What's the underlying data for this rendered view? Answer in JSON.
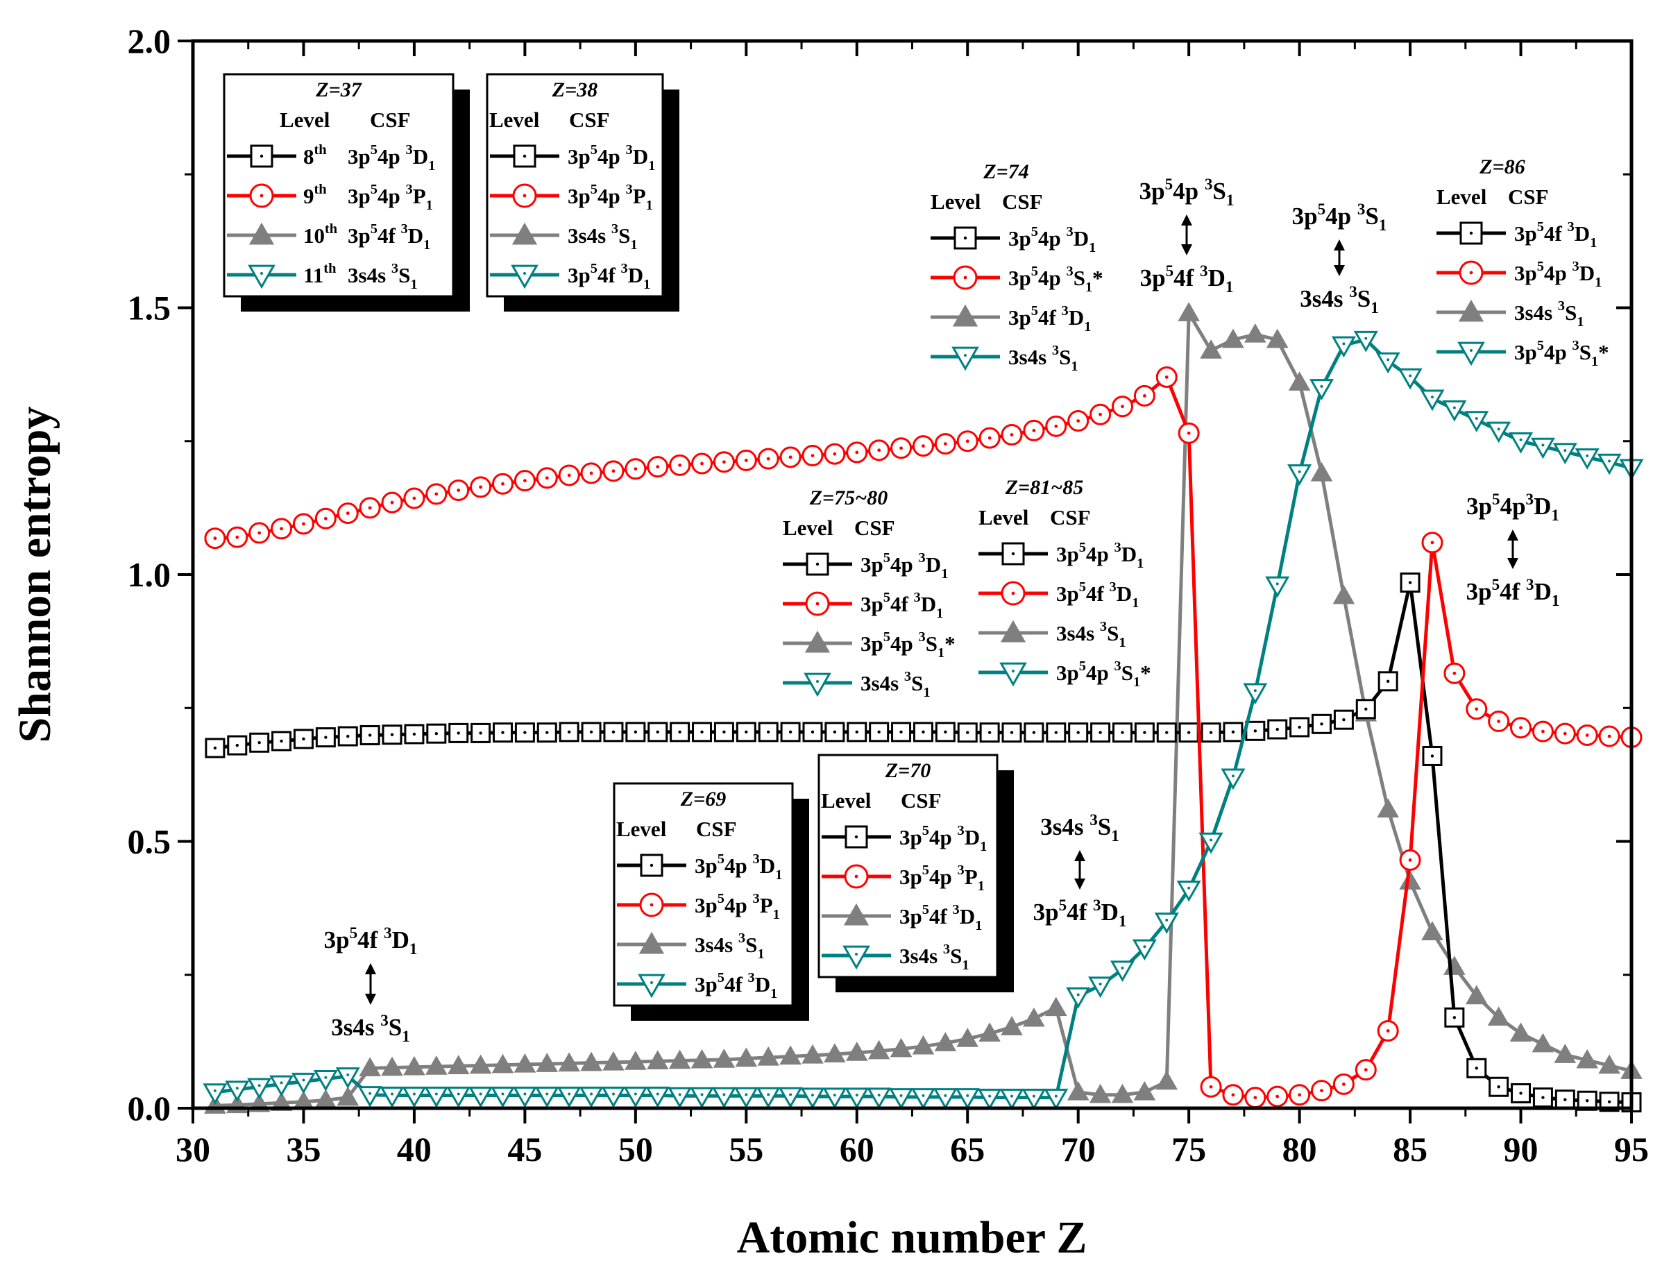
{
  "chart_data": {
    "type": "line",
    "title": "",
    "xlabel": "Atomic number Z",
    "ylabel": "Shannon entropy",
    "xlim": [
      30,
      95
    ],
    "ylim": [
      0.0,
      2.0
    ],
    "x_ticks": [
      "30",
      "35",
      "40",
      "45",
      "50",
      "55",
      "60",
      "65",
      "70",
      "75",
      "80",
      "85",
      "90",
      "95"
    ],
    "y_ticks": [
      "0.0",
      "0.5",
      "1.0",
      "1.5",
      "2.0"
    ],
    "x": [
      31,
      32,
      33,
      34,
      35,
      36,
      37,
      38,
      39,
      40,
      41,
      42,
      43,
      44,
      45,
      46,
      47,
      48,
      49,
      50,
      51,
      52,
      53,
      54,
      55,
      56,
      57,
      58,
      59,
      60,
      61,
      62,
      63,
      64,
      65,
      66,
      67,
      68,
      69,
      70,
      71,
      72,
      73,
      74,
      75,
      76,
      77,
      78,
      79,
      80,
      81,
      82,
      83,
      84,
      85,
      86,
      87,
      88,
      89,
      90,
      91,
      92,
      93,
      94,
      95
    ],
    "series": [
      {
        "name": "black",
        "color": "#000000",
        "marker": "square-dot",
        "values": [
          0.675,
          0.68,
          0.685,
          0.688,
          0.692,
          0.695,
          0.697,
          0.699,
          0.7,
          0.701,
          0.702,
          0.703,
          0.703,
          0.704,
          0.704,
          0.704,
          0.705,
          0.705,
          0.705,
          0.705,
          0.705,
          0.705,
          0.705,
          0.705,
          0.705,
          0.705,
          0.705,
          0.705,
          0.705,
          0.705,
          0.705,
          0.705,
          0.705,
          0.705,
          0.704,
          0.704,
          0.704,
          0.704,
          0.704,
          0.704,
          0.704,
          0.704,
          0.704,
          0.704,
          0.704,
          0.704,
          0.705,
          0.707,
          0.71,
          0.714,
          0.72,
          0.728,
          0.748,
          0.8,
          0.985,
          0.66,
          0.17,
          0.075,
          0.04,
          0.028,
          0.02,
          0.016,
          0.014,
          0.012,
          0.011
        ]
      },
      {
        "name": "red",
        "color": "#ff0000",
        "marker": "circle-dot",
        "values": [
          1.068,
          1.07,
          1.078,
          1.086,
          1.095,
          1.105,
          1.115,
          1.125,
          1.135,
          1.143,
          1.151,
          1.158,
          1.164,
          1.17,
          1.176,
          1.181,
          1.186,
          1.19,
          1.194,
          1.198,
          1.202,
          1.205,
          1.208,
          1.211,
          1.214,
          1.217,
          1.22,
          1.223,
          1.226,
          1.229,
          1.233,
          1.237,
          1.241,
          1.245,
          1.25,
          1.256,
          1.262,
          1.27,
          1.278,
          1.288,
          1.3,
          1.315,
          1.335,
          1.37,
          1.265,
          0.04,
          0.025,
          0.02,
          0.022,
          0.025,
          0.033,
          0.045,
          0.072,
          0.145,
          0.465,
          1.06,
          0.815,
          0.748,
          0.725,
          0.713,
          0.706,
          0.702,
          0.699,
          0.697,
          0.695
        ]
      },
      {
        "name": "gray",
        "color": "#7f7f7f",
        "marker": "triangle-up",
        "values": [
          0.005,
          0.006,
          0.008,
          0.01,
          0.012,
          0.015,
          0.02,
          0.075,
          0.076,
          0.077,
          0.078,
          0.079,
          0.08,
          0.081,
          0.082,
          0.083,
          0.084,
          0.085,
          0.086,
          0.087,
          0.088,
          0.089,
          0.09,
          0.091,
          0.093,
          0.095,
          0.097,
          0.099,
          0.101,
          0.104,
          0.107,
          0.111,
          0.116,
          0.122,
          0.13,
          0.14,
          0.152,
          0.168,
          0.188,
          0.03,
          0.025,
          0.025,
          0.03,
          0.05,
          1.49,
          1.42,
          1.44,
          1.45,
          1.44,
          1.36,
          1.19,
          0.96,
          0.74,
          0.56,
          0.425,
          0.33,
          0.265,
          0.21,
          0.17,
          0.14,
          0.12,
          0.1,
          0.09,
          0.08,
          0.07
        ]
      },
      {
        "name": "teal",
        "color": "#008080",
        "marker": "triangle-down",
        "values": [
          0.03,
          0.035,
          0.04,
          0.045,
          0.05,
          0.055,
          0.06,
          0.025,
          0.024,
          0.024,
          0.024,
          0.024,
          0.024,
          0.024,
          0.024,
          0.024,
          0.024,
          0.024,
          0.024,
          0.024,
          0.024,
          0.023,
          0.023,
          0.023,
          0.023,
          0.023,
          0.023,
          0.022,
          0.022,
          0.022,
          0.022,
          0.021,
          0.021,
          0.021,
          0.021,
          0.02,
          0.02,
          0.02,
          0.02,
          0.21,
          0.23,
          0.26,
          0.3,
          0.35,
          0.41,
          0.5,
          0.62,
          0.78,
          0.98,
          1.19,
          1.35,
          1.43,
          1.44,
          1.4,
          1.37,
          1.33,
          1.31,
          1.29,
          1.27,
          1.25,
          1.24,
          1.23,
          1.22,
          1.21,
          1.2
        ]
      }
    ],
    "legends": [
      {
        "title": "Z=37",
        "head": [
          "Level",
          "CSF"
        ],
        "entries": [
          {
            "marker": "square-dot",
            "color": "#000000",
            "level": "8",
            "level_sup": "th",
            "csf": "3p⁵4p ³D₁"
          },
          {
            "marker": "circle-dot",
            "color": "#ff0000",
            "level": "9",
            "level_sup": "th",
            "csf": "3p⁵4p ³P₁"
          },
          {
            "marker": "triangle-up",
            "color": "#7f7f7f",
            "level": "10",
            "level_sup": "th",
            "csf": "3p⁵4f ³D₁"
          },
          {
            "marker": "triangle-down",
            "color": "#008080",
            "level": "11",
            "level_sup": "th",
            "csf": "3s4s ³S₁"
          }
        ]
      },
      {
        "title": "Z=38",
        "head": [
          "Level",
          "CSF"
        ],
        "entries": [
          {
            "marker": "square-dot",
            "color": "#000000",
            "csf": "3p⁵4p ³D₁"
          },
          {
            "marker": "circle-dot",
            "color": "#ff0000",
            "csf": "3p⁵4p ³P₁"
          },
          {
            "marker": "triangle-up",
            "color": "#7f7f7f",
            "csf": "3s4s ³S₁"
          },
          {
            "marker": "triangle-down",
            "color": "#008080",
            "csf": "3p⁵4f ³D₁"
          }
        ]
      },
      {
        "title": "Z=74",
        "head": [
          "Level",
          "CSF"
        ],
        "entries": [
          {
            "marker": "square-dot",
            "color": "#000000",
            "csf": "3p⁵4p ³D₁"
          },
          {
            "marker": "circle-dot",
            "color": "#ff0000",
            "csf": "3p⁵4p ³S₁*"
          },
          {
            "marker": "triangle-up",
            "color": "#7f7f7f",
            "csf": "3p⁵4f ³D₁"
          },
          {
            "marker": "triangle-down",
            "color": "#008080",
            "csf": "3s4s ³S₁"
          }
        ]
      },
      {
        "title": "Z=86",
        "head": [
          "Level",
          "CSF"
        ],
        "entries": [
          {
            "marker": "square-dot",
            "color": "#000000",
            "csf": "3p⁵4f ³D₁"
          },
          {
            "marker": "circle-dot",
            "color": "#ff0000",
            "csf": "3p⁵4p ³D₁"
          },
          {
            "marker": "triangle-up",
            "color": "#7f7f7f",
            "csf": "3s4s ³S₁"
          },
          {
            "marker": "triangle-down",
            "color": "#008080",
            "csf": "3p⁵4p ³S₁*"
          }
        ]
      },
      {
        "title": "Z=75~80",
        "head": [
          "Level",
          "CSF"
        ],
        "entries": [
          {
            "marker": "square-dot",
            "color": "#000000",
            "csf": "3p⁵4p ³D₁"
          },
          {
            "marker": "circle-dot",
            "color": "#ff0000",
            "csf": "3p⁵4f ³D₁"
          },
          {
            "marker": "triangle-up",
            "color": "#7f7f7f",
            "csf": "3p⁵4p ³S₁*"
          },
          {
            "marker": "triangle-down",
            "color": "#008080",
            "csf": "3s4s ³S₁"
          }
        ]
      },
      {
        "title": "Z=81~85",
        "head": [
          "Level",
          "CSF"
        ],
        "entries": [
          {
            "marker": "square-dot",
            "color": "#000000",
            "csf": "3p⁵4p ³D₁"
          },
          {
            "marker": "circle-dot",
            "color": "#ff0000",
            "csf": "3p⁵4f ³D₁"
          },
          {
            "marker": "triangle-up",
            "color": "#7f7f7f",
            "csf": "3s4s  ³S₁"
          },
          {
            "marker": "triangle-down",
            "color": "#008080",
            "csf": "3p⁵4p ³S₁*"
          }
        ]
      },
      {
        "title": "Z=69",
        "head": [
          "Level",
          "CSF"
        ],
        "entries": [
          {
            "marker": "square-dot",
            "color": "#000000",
            "csf": "3p⁵4p ³D₁"
          },
          {
            "marker": "circle-dot",
            "color": "#ff0000",
            "csf": "3p⁵4p ³P₁"
          },
          {
            "marker": "triangle-up",
            "color": "#7f7f7f",
            "csf": "3s4s ³S₁"
          },
          {
            "marker": "triangle-down",
            "color": "#008080",
            "csf": "3p⁵4f ³D₁"
          }
        ]
      },
      {
        "title": "Z=70",
        "head": [
          "Level",
          "CSF"
        ],
        "entries": [
          {
            "marker": "square-dot",
            "color": "#000000",
            "csf": "3p⁵4p ³D₁"
          },
          {
            "marker": "circle-dot",
            "color": "#ff0000",
            "csf": "3p⁵4p ³P₁"
          },
          {
            "marker": "triangle-up",
            "color": "#7f7f7f",
            "csf": "3p⁵4f ³D₁"
          },
          {
            "marker": "triangle-down",
            "color": "#008080",
            "csf": "3s4s ³S₁"
          }
        ]
      }
    ],
    "annotations": [
      {
        "top": "3p⁵4p ³S₁",
        "bottom": "3p⁵4f ³D₁"
      },
      {
        "top": "3p⁵4p ³S₁",
        "bottom": "3s4s ³S₁"
      },
      {
        "top": "3p⁵4p³D₁",
        "bottom": "3p⁵4f ³D₁"
      },
      {
        "top": "3s4s ³S₁",
        "bottom": "3p⁵4f ³D₁"
      },
      {
        "top": "3p⁵4f ³D₁",
        "bottom": "3s4s ³S₁"
      }
    ]
  }
}
